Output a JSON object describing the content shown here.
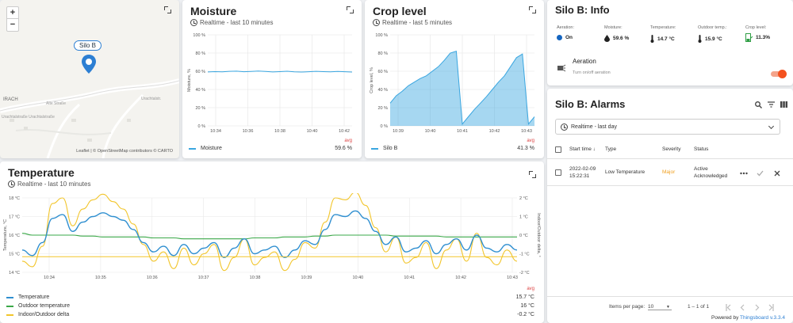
{
  "map": {
    "zoom_in": "+",
    "zoom_out": "−",
    "marker_label": "Silo B",
    "place_label": "IRACH",
    "attribution": "Leaflet | © OpenStreetMap contributors © CARTO"
  },
  "moisture": {
    "title": "Moisture",
    "subtitle": "Realtime - last 10 minutes",
    "legend_name": "Moisture",
    "avg_label": "avg",
    "avg_value": "59.6 %",
    "color": "#3aa6e0",
    "chart_data": {
      "type": "line",
      "ylabel": "Moisture, %",
      "yticks": [
        "100 %",
        "80 %",
        "60 %",
        "40 %",
        "20 %",
        "0 %"
      ],
      "xticks": [
        "10:34",
        "10:36",
        "10:38",
        "10:40",
        "10:42"
      ],
      "ylim": [
        0,
        100
      ],
      "series": [
        {
          "name": "Moisture",
          "values": [
            59.2,
            59.6,
            59.4,
            59.9,
            60.1,
            59.5,
            59.8,
            60.3,
            59.7,
            59.2,
            59.6,
            60.0,
            59.4,
            59.1,
            59.5,
            59.9,
            59.6,
            59.3,
            59.8,
            59.5,
            59.1
          ]
        }
      ]
    }
  },
  "crop": {
    "title": "Crop level",
    "subtitle": "Realtime - last 5 minutes",
    "legend_name": "Silo B",
    "avg_label": "avg",
    "avg_value": "41.3 %",
    "color": "#3aa6e0",
    "chart_data": {
      "type": "area",
      "ylabel": "Crop level, %",
      "yticks": [
        "100 %",
        "80 %",
        "60 %",
        "40 %",
        "20 %",
        "0 %"
      ],
      "xticks": [
        "10:39",
        "10:40",
        "10:41",
        "10:42",
        "10:43"
      ],
      "ylim": [
        0,
        100
      ],
      "series": [
        {
          "name": "Silo B",
          "values": [
            25,
            33,
            38,
            44,
            48,
            52,
            55,
            60,
            65,
            72,
            80,
            82,
            2,
            10,
            18,
            25,
            32,
            40,
            48,
            55,
            65,
            75,
            79,
            2,
            10
          ]
        }
      ]
    }
  },
  "temperature": {
    "title": "Temperature",
    "subtitle": "Realtime - last 10 minutes",
    "avg_label": "avg",
    "legend": [
      {
        "name": "Temperature",
        "value": "15.7 °C",
        "color": "#2f8fd0"
      },
      {
        "name": "Outdoor temperature",
        "value": "16 °C",
        "color": "#3aa848"
      },
      {
        "name": "Indoor/Outdoor delta",
        "value": "-0.2 °C",
        "color": "#f2c52a"
      }
    ],
    "chart_data": {
      "type": "line",
      "ylabel": "Temperature, °C",
      "y2label": "Indoor/Outdoor delta, °",
      "yticks": [
        "18 °C",
        "17 °C",
        "16 °C",
        "15 °C",
        "14 °C"
      ],
      "y2ticks": [
        "2 °C",
        "1 °C",
        "0 °C",
        "-1 °C",
        "-2 °C"
      ],
      "xticks": [
        "10:34",
        "10:35",
        "10:36",
        "10:37",
        "10:38",
        "10:39",
        "10:40",
        "10:41",
        "10:42",
        "10:43"
      ],
      "ylim": [
        14,
        18
      ],
      "series": [
        {
          "name": "Temperature",
          "values": [
            15.2,
            14.9,
            15.6,
            16.9,
            17.1,
            16.2,
            16.7,
            17.0,
            17.2,
            17.0,
            16.8,
            16.3,
            15.6,
            15.1,
            15.4,
            14.9,
            15.5,
            15.0,
            15.3,
            15.6,
            14.8,
            15.3,
            15.8,
            15.0,
            15.2,
            15.4,
            14.8,
            15.2,
            15.7,
            15.5,
            16.3,
            17.1,
            17.0,
            17.3,
            16.9,
            16.2,
            15.5,
            15.9,
            15.1,
            15.3,
            15.7,
            15.0,
            15.5,
            15.8,
            15.2,
            16.0,
            15.3,
            15.1,
            15.5,
            15.2
          ]
        },
        {
          "name": "Outdoor temperature",
          "values": [
            16.1,
            16.0,
            16.0,
            16.0,
            16.0,
            16.0,
            15.95,
            15.95,
            15.9,
            15.9,
            15.9,
            15.9,
            15.9,
            15.85,
            15.85,
            15.85,
            15.8,
            15.8,
            15.8,
            15.8,
            15.8,
            15.8,
            15.8,
            15.85,
            15.85,
            15.85,
            15.9,
            15.9,
            15.9,
            15.95,
            15.95,
            16.0,
            16.0,
            16.0,
            16.0,
            16.0,
            16.0,
            15.95,
            15.95,
            15.95,
            15.95,
            15.95,
            15.9,
            15.9,
            15.9,
            15.9,
            15.9,
            15.9,
            15.9,
            15.9
          ]
        },
        {
          "name": "Indoor/Outdoor delta",
          "values": [
            14.6,
            14.3,
            15.4,
            17.7,
            18.0,
            16.5,
            17.4,
            17.9,
            18.2,
            17.8,
            17.4,
            16.6,
            15.5,
            14.6,
            15.1,
            14.2,
            15.3,
            14.4,
            15.0,
            15.5,
            14.1,
            14.8,
            15.8,
            14.4,
            14.8,
            15.1,
            14.1,
            14.7,
            15.6,
            15.3,
            16.7,
            18.0,
            17.9,
            18.3,
            17.6,
            16.4,
            15.1,
            15.9,
            14.5,
            14.8,
            15.6,
            14.2,
            15.2,
            15.8,
            14.6,
            16.1,
            14.8,
            14.4,
            15.2,
            14.6
          ]
        }
      ]
    }
  },
  "info": {
    "title": "Silo B: Info",
    "cells": [
      {
        "label": "Aeration:",
        "value": "On"
      },
      {
        "label": "Moisture:",
        "value": "59.6 %"
      },
      {
        "label": "Temperature:",
        "value": "14.7 °C"
      },
      {
        "label": "Outdoor temp.:",
        "value": "15.9 °C"
      },
      {
        "label": "Crop level:",
        "value": "11.3%"
      }
    ],
    "aeration_title": "Aeration",
    "aeration_desc": "Turn on/off aeration",
    "toggle_color": "#f4511e"
  },
  "alarms": {
    "title": "Silo B: Alarms",
    "filter": "Realtime - last day",
    "columns": [
      "Start time ↓",
      "Type",
      "Severity",
      "Status"
    ],
    "rows": [
      {
        "date": "2022-02-09",
        "time": "15:22:31",
        "type": "Low Temperature",
        "severity": "Major",
        "status1": "Active",
        "status2": "Acknowledged"
      }
    ],
    "items_per_page_label": "Items per page:",
    "items_per_page": "10",
    "range": "1 – 1 of 1",
    "severity_color": "#f0a020"
  },
  "footer": {
    "powered_prefix": "Powered by ",
    "powered_link": "Thingsboard v.3.3.4"
  }
}
